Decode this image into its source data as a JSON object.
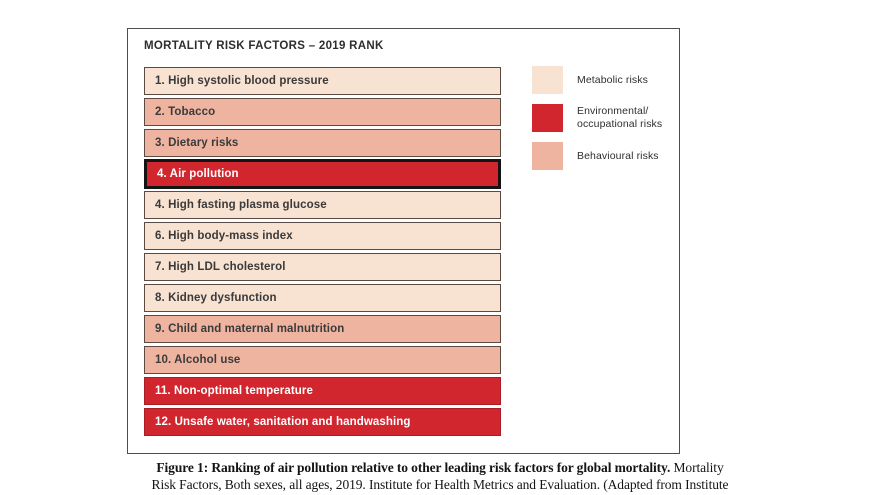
{
  "figure": {
    "title": "MORTALITY RISK FACTORS – 2019 RANK",
    "rows": [
      {
        "label": "1. High systolic blood pressure",
        "category": "metabolic",
        "highlight": false
      },
      {
        "label": "2. Tobacco",
        "category": "behavioural",
        "highlight": false
      },
      {
        "label": "3. Dietary risks",
        "category": "behavioural",
        "highlight": false
      },
      {
        "label": "4. Air pollution",
        "category": "environmental",
        "highlight": true
      },
      {
        "label": "4. High fasting plasma glucose",
        "category": "metabolic",
        "highlight": false
      },
      {
        "label": "6. High body-mass index",
        "category": "metabolic",
        "highlight": false
      },
      {
        "label": "7. High LDL cholesterol",
        "category": "metabolic",
        "highlight": false
      },
      {
        "label": "8. Kidney dysfunction",
        "category": "metabolic",
        "highlight": false
      },
      {
        "label": "9. Child and maternal malnutrition",
        "category": "behavioural",
        "highlight": false
      },
      {
        "label": "10. Alcohol use",
        "category": "behavioural",
        "highlight": false
      },
      {
        "label": "11. Non-optimal temperature",
        "category": "environmental",
        "highlight": false
      },
      {
        "label": "12. Unsafe water, sanitation and handwashing",
        "category": "environmental",
        "highlight": false
      }
    ],
    "legend": [
      {
        "label": "Metabolic risks",
        "color": "#f8e2d2"
      },
      {
        "label": "Environmental/\noccupational risks",
        "color": "#d2262f"
      },
      {
        "label": "Behavioural risks",
        "color": "#efb4a0"
      }
    ]
  },
  "caption": {
    "line1_bold": "Figure 1: Ranking of air pollution relative to other leading risk factors for global mortality.",
    "line1_regular": " Mortality",
    "line2": "Risk Factors, Both sexes, all ages, 2019. Institute for Health Metrics and Evaluation. (Adapted from Institute"
  },
  "colors": {
    "metabolic": "#f8e2d2",
    "behavioural": "#efb4a0",
    "environmental": "#d2262f",
    "red_border": "#a81e27",
    "bar_border": "#5c4a42",
    "highlight_border": "#141414",
    "box_border": "#4f4f4f",
    "text_dark": "#3a3a3a"
  },
  "chart_data": {
    "type": "table",
    "title": "MORTALITY RISK FACTORS – 2019 RANK",
    "columns": [
      "rank_label",
      "risk_factor",
      "risk_category"
    ],
    "rows": [
      [
        "1",
        "High systolic blood pressure",
        "Metabolic risks"
      ],
      [
        "2",
        "Tobacco",
        "Behavioural risks"
      ],
      [
        "3",
        "Dietary risks",
        "Behavioural risks"
      ],
      [
        "4",
        "Air pollution",
        "Environmental/occupational risks"
      ],
      [
        "4",
        "High fasting plasma glucose",
        "Metabolic risks"
      ],
      [
        "6",
        "High body-mass index",
        "Metabolic risks"
      ],
      [
        "7",
        "High LDL cholesterol",
        "Metabolic risks"
      ],
      [
        "8",
        "Kidney dysfunction",
        "Metabolic risks"
      ],
      [
        "9",
        "Child and maternal malnutrition",
        "Behavioural risks"
      ],
      [
        "10",
        "Alcohol use",
        "Behavioural risks"
      ],
      [
        "11",
        "Non-optimal temperature",
        "Environmental/occupational risks"
      ],
      [
        "12",
        "Unsafe water, sanitation and handwashing",
        "Environmental/occupational risks"
      ]
    ],
    "highlighted_row": "4. Air pollution",
    "legend": [
      "Metabolic risks",
      "Environmental/occupational risks",
      "Behavioural risks"
    ],
    "legend_position": "right"
  }
}
